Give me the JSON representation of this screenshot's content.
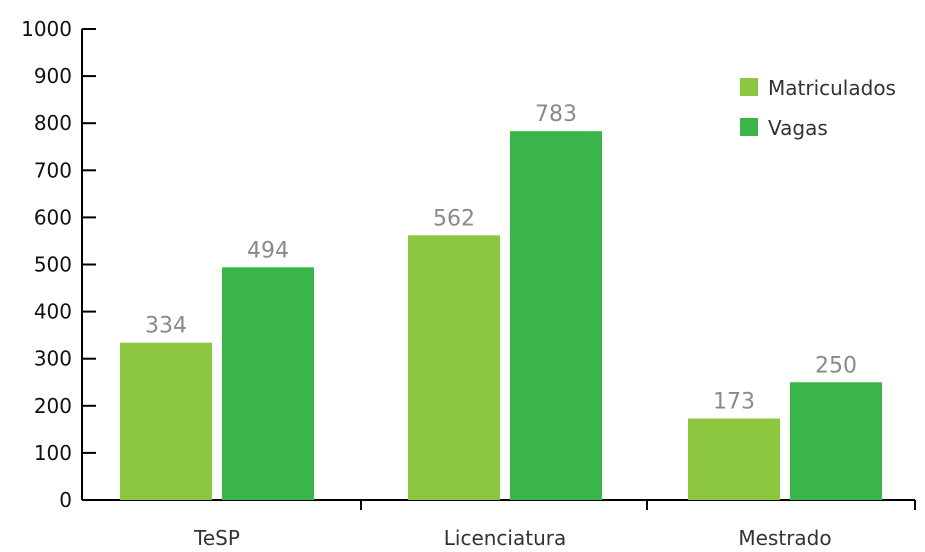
{
  "chart_data": {
    "type": "bar",
    "categories": [
      "TeSP",
      "Licenciatura",
      "Mestrado"
    ],
    "series": [
      {
        "name": "Matriculados",
        "values": [
          334,
          562,
          173
        ],
        "color": "#8dc63f"
      },
      {
        "name": "Vagas",
        "values": [
          494,
          783,
          250
        ],
        "color": "#39b54a"
      }
    ],
    "title": "",
    "xlabel": "",
    "ylabel": "",
    "ylim": [
      0,
      1000
    ],
    "yticks": [
      0,
      100,
      200,
      300,
      400,
      500,
      600,
      700,
      800,
      900,
      1000
    ],
    "grid": false,
    "legend_position": "top-right",
    "show_data_labels": true
  }
}
